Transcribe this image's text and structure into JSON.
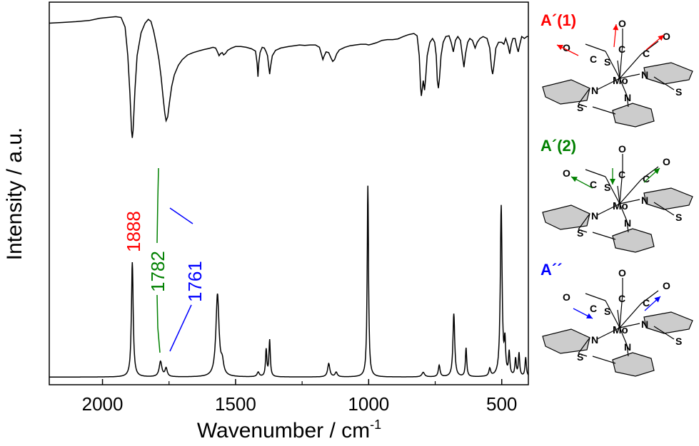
{
  "chart_data": {
    "type": "line",
    "xlabel": "Wavenumber / cm",
    "xlabel_sup": "-1",
    "ylabel": "Intensity / a.u.",
    "xlim": [
      2200,
      400
    ],
    "x_reversed": true,
    "x_ticks": [
      2000,
      1500,
      1000,
      500
    ],
    "x_tick_labels": [
      "2000",
      "1500",
      "1000",
      "500"
    ],
    "ylim": [
      0,
      1
    ],
    "grid": false,
    "series": [
      {
        "role": "experimental",
        "color": "#000000",
        "points": [
          [
            2200,
            0.945
          ],
          [
            2150,
            0.947
          ],
          [
            2100,
            0.949
          ],
          [
            2050,
            0.952
          ],
          [
            2010,
            0.958
          ],
          [
            1980,
            0.96
          ],
          [
            1950,
            0.962
          ],
          [
            1930,
            0.96
          ],
          [
            1915,
            0.935
          ],
          [
            1905,
            0.86
          ],
          [
            1897,
            0.76
          ],
          [
            1891,
            0.665
          ],
          [
            1888,
            0.645
          ],
          [
            1885,
            0.665
          ],
          [
            1878,
            0.77
          ],
          [
            1870,
            0.86
          ],
          [
            1855,
            0.92
          ],
          [
            1840,
            0.945
          ],
          [
            1828,
            0.955
          ],
          [
            1818,
            0.95
          ],
          [
            1808,
            0.925
          ],
          [
            1798,
            0.89
          ],
          [
            1788,
            0.85
          ],
          [
            1780,
            0.805
          ],
          [
            1772,
            0.75
          ],
          [
            1766,
            0.71
          ],
          [
            1761,
            0.69
          ],
          [
            1755,
            0.7
          ],
          [
            1748,
            0.74
          ],
          [
            1740,
            0.78
          ],
          [
            1730,
            0.81
          ],
          [
            1715,
            0.835
          ],
          [
            1700,
            0.85
          ],
          [
            1680,
            0.862
          ],
          [
            1660,
            0.868
          ],
          [
            1640,
            0.872
          ],
          [
            1620,
            0.876
          ],
          [
            1600,
            0.879
          ],
          [
            1585,
            0.882
          ],
          [
            1575,
            0.88
          ],
          [
            1568,
            0.87
          ],
          [
            1562,
            0.86
          ],
          [
            1556,
            0.866
          ],
          [
            1550,
            0.868
          ],
          [
            1545,
            0.862
          ],
          [
            1538,
            0.866
          ],
          [
            1530,
            0.874
          ],
          [
            1515,
            0.88
          ],
          [
            1500,
            0.884
          ],
          [
            1480,
            0.884
          ],
          [
            1460,
            0.882
          ],
          [
            1440,
            0.878
          ],
          [
            1425,
            0.872
          ],
          [
            1419,
            0.84
          ],
          [
            1416,
            0.805
          ],
          [
            1413,
            0.84
          ],
          [
            1408,
            0.868
          ],
          [
            1400,
            0.882
          ],
          [
            1392,
            0.88
          ],
          [
            1385,
            0.87
          ],
          [
            1380,
            0.86
          ],
          [
            1375,
            0.83
          ],
          [
            1372,
            0.812
          ],
          [
            1369,
            0.83
          ],
          [
            1362,
            0.86
          ],
          [
            1350,
            0.874
          ],
          [
            1330,
            0.88
          ],
          [
            1300,
            0.884
          ],
          [
            1280,
            0.886
          ],
          [
            1260,
            0.888
          ],
          [
            1240,
            0.887
          ],
          [
            1220,
            0.888
          ],
          [
            1200,
            0.888
          ],
          [
            1185,
            0.882
          ],
          [
            1178,
            0.865
          ],
          [
            1172,
            0.85
          ],
          [
            1168,
            0.858
          ],
          [
            1160,
            0.87
          ],
          [
            1150,
            0.868
          ],
          [
            1142,
            0.855
          ],
          [
            1135,
            0.845
          ],
          [
            1128,
            0.85
          ],
          [
            1120,
            0.865
          ],
          [
            1110,
            0.875
          ],
          [
            1090,
            0.882
          ],
          [
            1070,
            0.886
          ],
          [
            1050,
            0.888
          ],
          [
            1030,
            0.89
          ],
          [
            1010,
            0.89
          ],
          [
            1000,
            0.888
          ],
          [
            990,
            0.89
          ],
          [
            970,
            0.894
          ],
          [
            950,
            0.9
          ],
          [
            930,
            0.902
          ],
          [
            910,
            0.902
          ],
          [
            890,
            0.904
          ],
          [
            870,
            0.91
          ],
          [
            850,
            0.915
          ],
          [
            830,
            0.918
          ],
          [
            818,
            0.912
          ],
          [
            810,
            0.86
          ],
          [
            805,
            0.78
          ],
          [
            802,
            0.755
          ],
          [
            799,
            0.772
          ],
          [
            795,
            0.795
          ],
          [
            790,
            0.77
          ],
          [
            786,
            0.8
          ],
          [
            780,
            0.86
          ],
          [
            770,
            0.895
          ],
          [
            760,
            0.905
          ],
          [
            752,
            0.895
          ],
          [
            746,
            0.86
          ],
          [
            742,
            0.795
          ],
          [
            738,
            0.775
          ],
          [
            734,
            0.8
          ],
          [
            728,
            0.86
          ],
          [
            720,
            0.895
          ],
          [
            710,
            0.91
          ],
          [
            698,
            0.912
          ],
          [
            690,
            0.895
          ],
          [
            682,
            0.87
          ],
          [
            674,
            0.9
          ],
          [
            665,
            0.91
          ],
          [
            655,
            0.9
          ],
          [
            648,
            0.86
          ],
          [
            642,
            0.83
          ],
          [
            636,
            0.865
          ],
          [
            628,
            0.895
          ],
          [
            620,
            0.905
          ],
          [
            610,
            0.9
          ],
          [
            600,
            0.88
          ],
          [
            592,
            0.895
          ],
          [
            582,
            0.905
          ],
          [
            570,
            0.91
          ],
          [
            555,
            0.905
          ],
          [
            545,
            0.88
          ],
          [
            538,
            0.825
          ],
          [
            534,
            0.812
          ],
          [
            530,
            0.83
          ],
          [
            522,
            0.88
          ],
          [
            512,
            0.895
          ],
          [
            500,
            0.895
          ],
          [
            492,
            0.89
          ],
          [
            485,
            0.905
          ],
          [
            476,
            0.885
          ],
          [
            470,
            0.865
          ],
          [
            464,
            0.89
          ],
          [
            458,
            0.905
          ],
          [
            450,
            0.905
          ],
          [
            444,
            0.885
          ],
          [
            438,
            0.87
          ],
          [
            432,
            0.89
          ],
          [
            425,
            0.91
          ],
          [
            415,
            0.905
          ],
          [
            405,
            0.91
          ],
          [
            400,
            0.91
          ]
        ]
      },
      {
        "role": "calculated",
        "color": "#000000",
        "baseline": 0.02,
        "peaks": [
          {
            "x": 1888,
            "height": 0.3,
            "width": 4
          },
          {
            "x": 1782,
            "height": 0.04,
            "width": 6
          },
          {
            "x": 1761,
            "height": 0.022,
            "width": 5
          },
          {
            "x": 1568,
            "height": 0.215,
            "width": 7
          },
          {
            "x": 1550,
            "height": 0.03,
            "width": 6
          },
          {
            "x": 1415,
            "height": 0.012,
            "width": 5
          },
          {
            "x": 1385,
            "height": 0.07,
            "width": 3
          },
          {
            "x": 1372,
            "height": 0.095,
            "width": 3
          },
          {
            "x": 1150,
            "height": 0.035,
            "width": 5
          },
          {
            "x": 1122,
            "height": 0.012,
            "width": 5
          },
          {
            "x": 1003,
            "height": 0.5,
            "width": 3
          },
          {
            "x": 795,
            "height": 0.012,
            "width": 6
          },
          {
            "x": 735,
            "height": 0.03,
            "width": 4
          },
          {
            "x": 680,
            "height": 0.165,
            "width": 4
          },
          {
            "x": 634,
            "height": 0.075,
            "width": 3
          },
          {
            "x": 545,
            "height": 0.02,
            "width": 4
          },
          {
            "x": 502,
            "height": 0.445,
            "width": 4
          },
          {
            "x": 488,
            "height": 0.08,
            "width": 3
          },
          {
            "x": 472,
            "height": 0.06,
            "width": 3
          },
          {
            "x": 448,
            "height": 0.045,
            "width": 3
          },
          {
            "x": 435,
            "height": 0.06,
            "width": 3
          },
          {
            "x": 410,
            "height": 0.05,
            "width": 3
          }
        ]
      }
    ],
    "annotations": [
      {
        "text": "1888",
        "x": 1888,
        "color": "#ff0000"
      },
      {
        "text": "1782",
        "x": 1782,
        "color": "#008000"
      },
      {
        "text": "1761",
        "x": 1761,
        "color": "#0000ff"
      }
    ]
  },
  "modes": [
    {
      "label": "A´(1)",
      "color": "#ff0000"
    },
    {
      "label": "A´(2)",
      "color": "#008000"
    },
    {
      "label": "A´´",
      "color": "#0000ff"
    }
  ],
  "atoms": {
    "mo": "Mo",
    "n": "N",
    "s": "S",
    "o": "O",
    "c": "C"
  }
}
